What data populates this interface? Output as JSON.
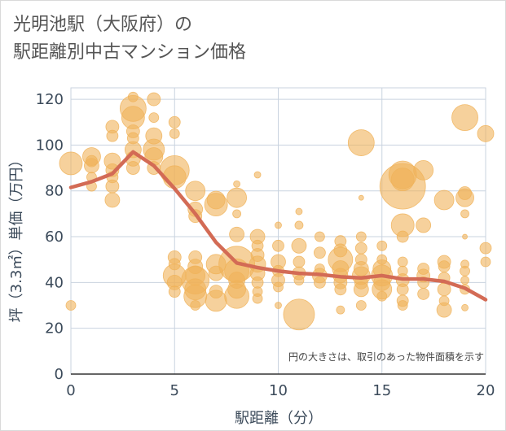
{
  "chart_data": {
    "type": "scatter",
    "title": [
      "光明池駅（大阪府）の",
      "駅距離別中古マンション価格"
    ],
    "xlabel": "駅距離（分）",
    "ylabel": "坪（3.3㎡）単価（万円）",
    "xlim": [
      0,
      20
    ],
    "ylim": [
      0,
      125
    ],
    "x_ticks": [
      0,
      5,
      10,
      15,
      20
    ],
    "y_ticks": [
      0,
      20,
      40,
      60,
      80,
      100,
      120
    ],
    "grid": true,
    "annotation": "円の大きさは、取引のあった物件面積を示す",
    "colors": {
      "bubble": "#f0b35a",
      "line": "#d36b55",
      "grid": "#c9d3df",
      "text": "#3b4a5a"
    },
    "series": [
      {
        "kind": "bubbles",
        "points": [
          {
            "x": 0,
            "y": 92,
            "s": 14
          },
          {
            "x": 0,
            "y": 30,
            "s": 6
          },
          {
            "x": 1,
            "y": 95,
            "s": 11
          },
          {
            "x": 1,
            "y": 91,
            "s": 9
          },
          {
            "x": 1,
            "y": 93,
            "s": 7
          },
          {
            "x": 1,
            "y": 86,
            "s": 6
          },
          {
            "x": 1,
            "y": 82,
            "s": 6
          },
          {
            "x": 2,
            "y": 108,
            "s": 8
          },
          {
            "x": 2,
            "y": 104,
            "s": 7
          },
          {
            "x": 2,
            "y": 93,
            "s": 10
          },
          {
            "x": 2,
            "y": 89,
            "s": 8
          },
          {
            "x": 2,
            "y": 86,
            "s": 7
          },
          {
            "x": 2,
            "y": 82,
            "s": 8
          },
          {
            "x": 2,
            "y": 76,
            "s": 9
          },
          {
            "x": 3,
            "y": 121,
            "s": 6
          },
          {
            "x": 3,
            "y": 116,
            "s": 16
          },
          {
            "x": 3,
            "y": 112,
            "s": 14
          },
          {
            "x": 3,
            "y": 106,
            "s": 8
          },
          {
            "x": 3,
            "y": 103,
            "s": 7
          },
          {
            "x": 3,
            "y": 98,
            "s": 10
          },
          {
            "x": 3,
            "y": 94,
            "s": 9
          },
          {
            "x": 3,
            "y": 90,
            "s": 8
          },
          {
            "x": 4,
            "y": 120,
            "s": 8
          },
          {
            "x": 4,
            "y": 112,
            "s": 6
          },
          {
            "x": 4,
            "y": 104,
            "s": 10
          },
          {
            "x": 4,
            "y": 98,
            "s": 13
          },
          {
            "x": 4,
            "y": 95,
            "s": 11
          },
          {
            "x": 4,
            "y": 90,
            "s": 8
          },
          {
            "x": 5,
            "y": 110,
            "s": 7
          },
          {
            "x": 5,
            "y": 105,
            "s": 6
          },
          {
            "x": 5,
            "y": 89,
            "s": 18
          },
          {
            "x": 5,
            "y": 86,
            "s": 14
          },
          {
            "x": 5,
            "y": 51,
            "s": 8
          },
          {
            "x": 5,
            "y": 48,
            "s": 7
          },
          {
            "x": 5,
            "y": 43,
            "s": 14
          },
          {
            "x": 5,
            "y": 40,
            "s": 9
          },
          {
            "x": 5,
            "y": 36,
            "s": 7
          },
          {
            "x": 6,
            "y": 80,
            "s": 12
          },
          {
            "x": 6,
            "y": 72,
            "s": 9
          },
          {
            "x": 6,
            "y": 69,
            "s": 8
          },
          {
            "x": 6,
            "y": 51,
            "s": 8
          },
          {
            "x": 6,
            "y": 47,
            "s": 9
          },
          {
            "x": 6,
            "y": 43,
            "s": 12
          },
          {
            "x": 6,
            "y": 41,
            "s": 17
          },
          {
            "x": 6,
            "y": 37,
            "s": 13
          },
          {
            "x": 6,
            "y": 34,
            "s": 14
          },
          {
            "x": 6,
            "y": 30,
            "s": 6
          },
          {
            "x": 7,
            "y": 76,
            "s": 11
          },
          {
            "x": 7,
            "y": 74,
            "s": 14
          },
          {
            "x": 7,
            "y": 48,
            "s": 12
          },
          {
            "x": 7,
            "y": 44,
            "s": 9
          },
          {
            "x": 7,
            "y": 36,
            "s": 8
          },
          {
            "x": 7,
            "y": 32,
            "s": 13
          },
          {
            "x": 8,
            "y": 83,
            "s": 4
          },
          {
            "x": 8,
            "y": 77,
            "s": 12
          },
          {
            "x": 8,
            "y": 70,
            "s": 5
          },
          {
            "x": 8,
            "y": 61,
            "s": 9
          },
          {
            "x": 8,
            "y": 48,
            "s": 22
          },
          {
            "x": 8,
            "y": 45,
            "s": 15
          },
          {
            "x": 8,
            "y": 41,
            "s": 10
          },
          {
            "x": 8,
            "y": 37,
            "s": 11
          },
          {
            "x": 8,
            "y": 34,
            "s": 15
          },
          {
            "x": 9,
            "y": 87,
            "s": 4
          },
          {
            "x": 9,
            "y": 60,
            "s": 9
          },
          {
            "x": 9,
            "y": 56,
            "s": 7
          },
          {
            "x": 9,
            "y": 52,
            "s": 8
          },
          {
            "x": 9,
            "y": 48,
            "s": 10
          },
          {
            "x": 9,
            "y": 44,
            "s": 9
          },
          {
            "x": 9,
            "y": 40,
            "s": 7
          },
          {
            "x": 9,
            "y": 36,
            "s": 6
          },
          {
            "x": 9,
            "y": 33,
            "s": 6
          },
          {
            "x": 10,
            "y": 65,
            "s": 4
          },
          {
            "x": 10,
            "y": 56,
            "s": 7
          },
          {
            "x": 10,
            "y": 49,
            "s": 9
          },
          {
            "x": 10,
            "y": 45,
            "s": 7
          },
          {
            "x": 10,
            "y": 41,
            "s": 8
          },
          {
            "x": 10,
            "y": 38,
            "s": 6
          },
          {
            "x": 10,
            "y": 30,
            "s": 4
          },
          {
            "x": 11,
            "y": 71,
            "s": 4
          },
          {
            "x": 11,
            "y": 65,
            "s": 5
          },
          {
            "x": 11,
            "y": 56,
            "s": 9
          },
          {
            "x": 11,
            "y": 49,
            "s": 7
          },
          {
            "x": 11,
            "y": 44,
            "s": 8
          },
          {
            "x": 11,
            "y": 41,
            "s": 6
          },
          {
            "x": 11,
            "y": 26,
            "s": 19
          },
          {
            "x": 12,
            "y": 60,
            "s": 6
          },
          {
            "x": 12,
            "y": 53,
            "s": 7
          },
          {
            "x": 12,
            "y": 46,
            "s": 6
          },
          {
            "x": 12,
            "y": 43,
            "s": 9
          },
          {
            "x": 12,
            "y": 40,
            "s": 7
          },
          {
            "x": 13,
            "y": 58,
            "s": 7
          },
          {
            "x": 13,
            "y": 54,
            "s": 8
          },
          {
            "x": 13,
            "y": 50,
            "s": 15
          },
          {
            "x": 13,
            "y": 46,
            "s": 10
          },
          {
            "x": 13,
            "y": 43,
            "s": 9
          },
          {
            "x": 13,
            "y": 40,
            "s": 8
          },
          {
            "x": 13,
            "y": 37,
            "s": 7
          },
          {
            "x": 13,
            "y": 28,
            "s": 5
          },
          {
            "x": 14,
            "y": 101,
            "s": 16
          },
          {
            "x": 14,
            "y": 77,
            "s": 3
          },
          {
            "x": 14,
            "y": 60,
            "s": 6
          },
          {
            "x": 14,
            "y": 55,
            "s": 7
          },
          {
            "x": 14,
            "y": 50,
            "s": 7
          },
          {
            "x": 14,
            "y": 46,
            "s": 9
          },
          {
            "x": 14,
            "y": 43,
            "s": 11
          },
          {
            "x": 14,
            "y": 40,
            "s": 8
          },
          {
            "x": 14,
            "y": 37,
            "s": 9
          },
          {
            "x": 14,
            "y": 30,
            "s": 6
          },
          {
            "x": 15,
            "y": 56,
            "s": 6
          },
          {
            "x": 15,
            "y": 50,
            "s": 6
          },
          {
            "x": 15,
            "y": 46,
            "s": 11
          },
          {
            "x": 15,
            "y": 43,
            "s": 13
          },
          {
            "x": 15,
            "y": 40,
            "s": 10
          },
          {
            "x": 15,
            "y": 37,
            "s": 12
          },
          {
            "x": 15,
            "y": 34,
            "s": 6
          },
          {
            "x": 16,
            "y": 87,
            "s": 17
          },
          {
            "x": 16,
            "y": 85,
            "s": 14
          },
          {
            "x": 16,
            "y": 82,
            "s": 28
          },
          {
            "x": 16,
            "y": 65,
            "s": 14
          },
          {
            "x": 16,
            "y": 60,
            "s": 7
          },
          {
            "x": 16,
            "y": 49,
            "s": 6
          },
          {
            "x": 16,
            "y": 45,
            "s": 6
          },
          {
            "x": 16,
            "y": 41,
            "s": 8
          },
          {
            "x": 16,
            "y": 37,
            "s": 7
          },
          {
            "x": 16,
            "y": 32,
            "s": 7
          },
          {
            "x": 16,
            "y": 30,
            "s": 6
          },
          {
            "x": 17,
            "y": 89,
            "s": 12
          },
          {
            "x": 17,
            "y": 65,
            "s": 9
          },
          {
            "x": 17,
            "y": 46,
            "s": 7
          },
          {
            "x": 17,
            "y": 43,
            "s": 8
          },
          {
            "x": 17,
            "y": 40,
            "s": 7
          },
          {
            "x": 17,
            "y": 35,
            "s": 7
          },
          {
            "x": 18,
            "y": 76,
            "s": 12
          },
          {
            "x": 18,
            "y": 49,
            "s": 8
          },
          {
            "x": 18,
            "y": 47,
            "s": 7
          },
          {
            "x": 18,
            "y": 42,
            "s": 7
          },
          {
            "x": 18,
            "y": 37,
            "s": 8
          },
          {
            "x": 18,
            "y": 32,
            "s": 6
          },
          {
            "x": 18,
            "y": 28,
            "s": 9
          },
          {
            "x": 19,
            "y": 112,
            "s": 16
          },
          {
            "x": 19,
            "y": 79,
            "s": 8
          },
          {
            "x": 19,
            "y": 77,
            "s": 11
          },
          {
            "x": 19,
            "y": 70,
            "s": 5
          },
          {
            "x": 19,
            "y": 60,
            "s": 3
          },
          {
            "x": 19,
            "y": 48,
            "s": 5
          },
          {
            "x": 19,
            "y": 45,
            "s": 6
          },
          {
            "x": 19,
            "y": 41,
            "s": 5
          },
          {
            "x": 19,
            "y": 37,
            "s": 6
          },
          {
            "x": 19,
            "y": 29,
            "s": 4
          },
          {
            "x": 20,
            "y": 105,
            "s": 10
          },
          {
            "x": 20,
            "y": 55,
            "s": 7
          },
          {
            "x": 20,
            "y": 49,
            "s": 6
          }
        ]
      },
      {
        "kind": "line",
        "points": [
          {
            "x": 0,
            "y": 81.5
          },
          {
            "x": 1,
            "y": 84
          },
          {
            "x": 2,
            "y": 87.5
          },
          {
            "x": 3,
            "y": 97
          },
          {
            "x": 4,
            "y": 91
          },
          {
            "x": 5,
            "y": 81
          },
          {
            "x": 6,
            "y": 70
          },
          {
            "x": 7,
            "y": 57.5
          },
          {
            "x": 8,
            "y": 48.5
          },
          {
            "x": 9,
            "y": 46.5
          },
          {
            "x": 10,
            "y": 45
          },
          {
            "x": 11,
            "y": 44
          },
          {
            "x": 12,
            "y": 43.5
          },
          {
            "x": 13,
            "y": 42.5
          },
          {
            "x": 14,
            "y": 42
          },
          {
            "x": 15,
            "y": 43
          },
          {
            "x": 16,
            "y": 41.5
          },
          {
            "x": 17,
            "y": 41.5
          },
          {
            "x": 18,
            "y": 40.5
          },
          {
            "x": 19,
            "y": 37.5
          },
          {
            "x": 20,
            "y": 32.5
          }
        ]
      }
    ]
  }
}
